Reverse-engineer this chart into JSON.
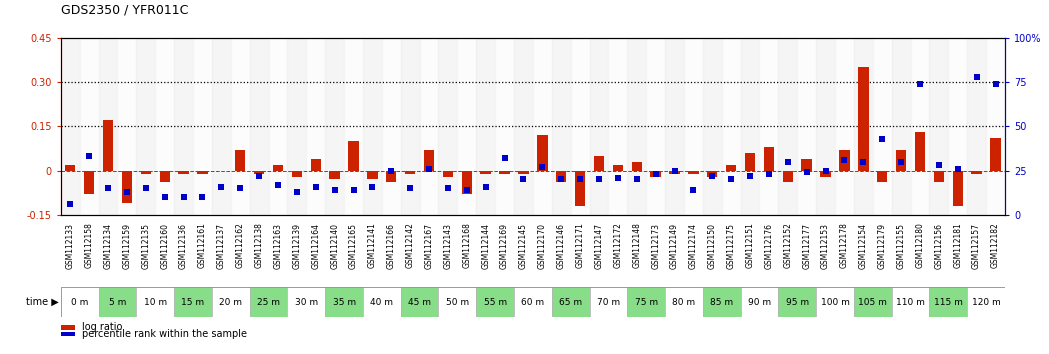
{
  "title": "GDS2350 / YFR011C",
  "gsm_labels": [
    "GSM112133",
    "GSM112158",
    "GSM112134",
    "GSM112159",
    "GSM112135",
    "GSM112160",
    "GSM112136",
    "GSM112161",
    "GSM112137",
    "GSM112162",
    "GSM112138",
    "GSM112163",
    "GSM112139",
    "GSM112164",
    "GSM112140",
    "GSM112165",
    "GSM112141",
    "GSM112166",
    "GSM112142",
    "GSM112167",
    "GSM112143",
    "GSM112168",
    "GSM112144",
    "GSM112169",
    "GSM112145",
    "GSM112170",
    "GSM112146",
    "GSM112171",
    "GSM112147",
    "GSM112172",
    "GSM112148",
    "GSM112173",
    "GSM112149",
    "GSM112174",
    "GSM112150",
    "GSM112175",
    "GSM112151",
    "GSM112176",
    "GSM112152",
    "GSM112177",
    "GSM112153",
    "GSM112178",
    "GSM112154",
    "GSM112179",
    "GSM112155",
    "GSM112180",
    "GSM112156",
    "GSM112181",
    "GSM112157",
    "GSM112182"
  ],
  "time_labels": [
    "0 m",
    "5 m",
    "10 m",
    "15 m",
    "20 m",
    "25 m",
    "30 m",
    "35 m",
    "40 m",
    "45 m",
    "50 m",
    "55 m",
    "60 m",
    "65 m",
    "70 m",
    "75 m",
    "80 m",
    "85 m",
    "90 m",
    "95 m",
    "100 m",
    "105 m",
    "110 m",
    "115 m",
    "120 m"
  ],
  "log_ratio": [
    0.02,
    -0.08,
    0.17,
    -0.11,
    -0.01,
    -0.04,
    -0.01,
    -0.01,
    0.0,
    0.07,
    -0.01,
    0.02,
    -0.02,
    0.04,
    -0.03,
    0.1,
    -0.03,
    -0.04,
    -0.01,
    0.07,
    -0.02,
    -0.08,
    -0.01,
    -0.01,
    -0.01,
    0.12,
    -0.04,
    -0.12,
    0.05,
    0.02,
    0.03,
    -0.02,
    -0.01,
    -0.01,
    -0.02,
    0.02,
    0.06,
    0.08,
    -0.04,
    0.04,
    -0.02,
    0.07,
    0.35,
    -0.04,
    0.07,
    0.13,
    -0.04,
    -0.12,
    -0.01,
    0.11
  ],
  "percentile_rank": [
    6,
    33,
    15,
    13,
    15,
    10,
    10,
    10,
    16,
    15,
    22,
    17,
    13,
    16,
    14,
    14,
    16,
    25,
    15,
    26,
    15,
    14,
    16,
    32,
    20,
    27,
    20,
    20,
    20,
    21,
    20,
    23,
    25,
    14,
    22,
    20,
    22,
    23,
    30,
    24,
    25,
    31,
    30,
    43,
    30,
    74,
    28,
    26,
    78,
    74
  ],
  "ylim_left": [
    -0.15,
    0.45
  ],
  "ylim_right": [
    0,
    100
  ],
  "bar_color": "#cc2200",
  "square_color": "#0000cc",
  "bg_color": "#ffffff",
  "gsm_bg_even": "#e8e8e8",
  "gsm_bg_odd": "#f8f8f8",
  "time_bg_white": "#ffffff",
  "time_bg_green": "#88dd88",
  "black_bar_color": "#222222",
  "title_fontsize": 9,
  "gsm_fontsize": 5.5,
  "time_fontsize": 6.5,
  "legend_fontsize": 7,
  "bar_width": 0.55
}
